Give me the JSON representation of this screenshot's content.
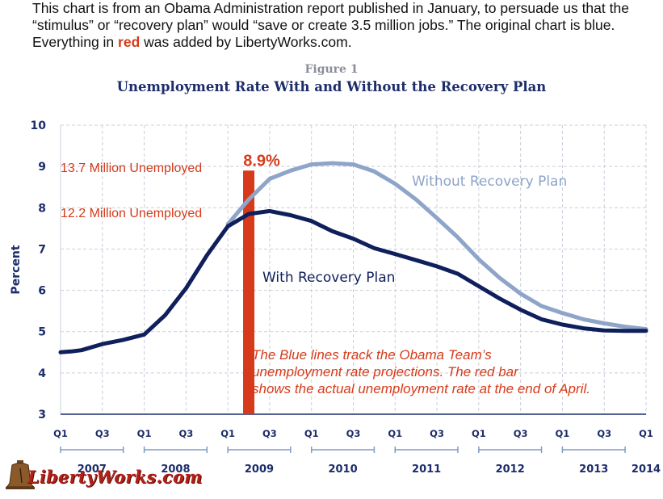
{
  "intro": {
    "part1": "This chart is from an Obama Administration report published in January, to persuade us that the “stimulus” or “recovery plan” would “save or create 3.5 million jobs.”  The original chart is blue. Everything in ",
    "red_word": "red",
    "part2": " was added by LibertyWorks.com."
  },
  "logo": {
    "text": "LibertyWorks.com",
    "icon": "liberty-bell-icon"
  },
  "colors": {
    "with_plan": "#0f1f5c",
    "without_plan": "#8ea4c8",
    "red": "#d63a1a",
    "grid": "#c9cfd9",
    "axis_text": "#1d2d6b"
  },
  "chart_data": {
    "type": "line",
    "figure_label": "Figure 1",
    "title": "Unemployment Rate With and Without the Recovery Plan",
    "ylabel": "Percent",
    "ylim": [
      3,
      10
    ],
    "yticks": [
      3,
      4,
      5,
      6,
      7,
      8,
      9,
      10
    ],
    "xlim": [
      2007.0,
      2014.0
    ],
    "grid": true,
    "xticks": [
      {
        "x": 2007.0,
        "label": "Q1"
      },
      {
        "x": 2007.5,
        "label": "Q3"
      },
      {
        "x": 2008.0,
        "label": "Q1"
      },
      {
        "x": 2008.5,
        "label": "Q3"
      },
      {
        "x": 2009.0,
        "label": "Q1"
      },
      {
        "x": 2009.5,
        "label": "Q3"
      },
      {
        "x": 2010.0,
        "label": "Q1"
      },
      {
        "x": 2010.5,
        "label": "Q3"
      },
      {
        "x": 2011.0,
        "label": "Q1"
      },
      {
        "x": 2011.5,
        "label": "Q3"
      },
      {
        "x": 2012.0,
        "label": "Q1"
      },
      {
        "x": 2012.5,
        "label": "Q3"
      },
      {
        "x": 2013.0,
        "label": "Q1"
      },
      {
        "x": 2013.5,
        "label": "Q3"
      },
      {
        "x": 2014.0,
        "label": "Q1"
      }
    ],
    "years": [
      {
        "label": "2007",
        "start": 2007.0,
        "end": 2007.75
      },
      {
        "label": "2008",
        "start": 2008.0,
        "end": 2008.75
      },
      {
        "label": "2009",
        "start": 2009.0,
        "end": 2009.75
      },
      {
        "label": "2010",
        "start": 2010.0,
        "end": 2010.75
      },
      {
        "label": "2011",
        "start": 2011.0,
        "end": 2011.75
      },
      {
        "label": "2012",
        "start": 2012.0,
        "end": 2012.75
      },
      {
        "label": "2013",
        "start": 2013.0,
        "end": 2013.75
      },
      {
        "label": "2014",
        "start": 2014.0,
        "end": 2014.0
      }
    ],
    "series": [
      {
        "name": "Without Recovery Plan",
        "x": [
          2009.0,
          2009.25,
          2009.5,
          2009.75,
          2010.0,
          2010.25,
          2010.5,
          2010.75,
          2011.0,
          2011.25,
          2011.5,
          2011.75,
          2012.0,
          2012.25,
          2012.5,
          2012.75,
          2013.0,
          2013.25,
          2013.5,
          2013.75,
          2014.0
        ],
        "values": [
          7.6,
          8.2,
          8.7,
          8.9,
          9.05,
          9.08,
          9.05,
          8.88,
          8.58,
          8.2,
          7.75,
          7.28,
          6.75,
          6.3,
          5.92,
          5.62,
          5.45,
          5.3,
          5.2,
          5.12,
          5.06
        ]
      },
      {
        "name": "With Recovery Plan",
        "x": [
          2007.0,
          2007.125,
          2007.25,
          2007.5,
          2007.75,
          2008.0,
          2008.25,
          2008.5,
          2008.75,
          2009.0,
          2009.25,
          2009.5,
          2009.75,
          2010.0,
          2010.25,
          2010.5,
          2010.75,
          2011.0,
          2011.25,
          2011.5,
          2011.75,
          2012.0,
          2012.25,
          2012.5,
          2012.75,
          2013.0,
          2013.25,
          2013.5,
          2013.75,
          2014.0
        ],
        "values": [
          4.5,
          4.52,
          4.55,
          4.7,
          4.8,
          4.93,
          5.4,
          6.05,
          6.85,
          7.55,
          7.85,
          7.92,
          7.82,
          7.68,
          7.43,
          7.25,
          7.02,
          6.88,
          6.73,
          6.58,
          6.4,
          6.1,
          5.8,
          5.53,
          5.3,
          5.17,
          5.08,
          5.03,
          5.02,
          5.02
        ]
      }
    ],
    "series_labels": [
      "Without Recovery Plan",
      "With Recovery Plan"
    ],
    "annotations": {
      "bar": {
        "x": 2009.25,
        "value": 8.9,
        "label": "8.9%"
      },
      "without_unemployed": "13.7 Million Unemployed",
      "with_unemployed": "12.2 Million Unemployed",
      "note_lines": [
        "The Blue lines track the Obama Team’s",
        "unemployment rate projections.  The red bar",
        "shows the actual unemployment rate at the end of April."
      ]
    }
  }
}
